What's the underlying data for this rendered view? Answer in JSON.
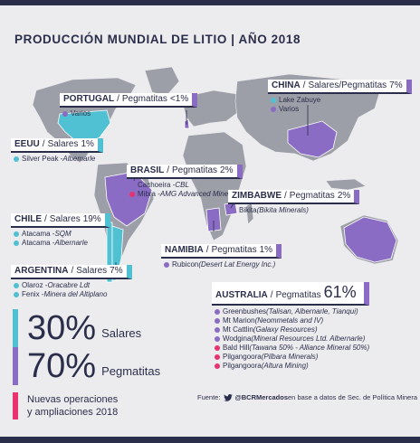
{
  "title": "PRODUCCIÓN MUNDIAL DE LITIO | AÑO 2018",
  "colors": {
    "pegmatitas": "#8b6cc4",
    "salares": "#4fc1d2",
    "nuevas": "#e8336e",
    "dark": "#2b2e4a",
    "land": "#9d9fa8"
  },
  "countries": {
    "portugal": {
      "name": "PORTUGAL",
      "type": "Pegmatitas",
      "pct": "<1%",
      "items": [
        {
          "text": "Varios",
          "extra": "",
          "kind": "p"
        }
      ]
    },
    "china": {
      "name": "CHINA",
      "type": "Salares/Pegmatitas",
      "pct": "7%",
      "items": [
        {
          "text": "Lake Zabuye",
          "extra": "",
          "kind": "s"
        },
        {
          "text": "Varios",
          "extra": "",
          "kind": "p"
        }
      ]
    },
    "eeuu": {
      "name": "EEUU",
      "type": "Salares",
      "pct": "1%",
      "items": [
        {
          "text": "Silver Peak - ",
          "extra": "Albemarle",
          "kind": "s"
        }
      ]
    },
    "brasil": {
      "name": "BRASIL",
      "type": "Pegmatitas",
      "pct": "2%",
      "items": [
        {
          "text": "Cachoeira - ",
          "extra": "CBL",
          "kind": "p"
        },
        {
          "text": "Mibra - ",
          "extra": "AMG Advanced Minerals",
          "kind": "n"
        }
      ]
    },
    "zimbabwe": {
      "name": "ZIMBABWE",
      "type": "Pegmatitas",
      "pct": "2%",
      "items": [
        {
          "text": "Bikita ",
          "extra": "(Bikita Minerals)",
          "kind": "p"
        }
      ]
    },
    "chile": {
      "name": "CHILE",
      "type": "Salares",
      "pct": "19%",
      "items": [
        {
          "text": "Atacama - ",
          "extra": "SQM",
          "kind": "s"
        },
        {
          "text": "Atacama - ",
          "extra": "Albernarle",
          "kind": "s"
        }
      ]
    },
    "namibia": {
      "name": "NAMIBIA",
      "type": "Pegmatitas",
      "pct": "1%",
      "items": [
        {
          "text": "Rubicon ",
          "extra": "(Desert Lat Energy Inc.)",
          "kind": "p"
        }
      ]
    },
    "argentina": {
      "name": "ARGENTINA",
      "type": "Salares",
      "pct": "7%",
      "items": [
        {
          "text": "Olaroz - ",
          "extra": "Oracabre Ldt",
          "kind": "s"
        },
        {
          "text": "Fenix - ",
          "extra": "Minera del Altiplano",
          "kind": "s"
        }
      ]
    },
    "australia": {
      "name": "AUSTRALIA",
      "type": "Pegmatitas",
      "pct": "61%",
      "items": [
        {
          "text": "Greenbushes ",
          "extra": "(Talisan, Albernarle, Tianqui)",
          "kind": "p"
        },
        {
          "text": "Mt Marion ",
          "extra": "(Neommetals and IV)",
          "kind": "p"
        },
        {
          "text": "Mt Cattlin ",
          "extra": "(Galaxy Resources)",
          "kind": "p"
        },
        {
          "text": "Wodgina ",
          "extra": "(Mineral Resources Ltd. Albernarle)",
          "kind": "p"
        },
        {
          "text": "Bald Hill ",
          "extra": "(Tawana 50% - Alliance Mineral 50%)",
          "kind": "n"
        },
        {
          "text": "Pilgangoora ",
          "extra": "(Pilbara Minerals)",
          "kind": "n"
        },
        {
          "text": "Pilgangoora ",
          "extra": "(Altura Mining)",
          "kind": "n"
        }
      ]
    }
  },
  "legend": {
    "salares_pct": "30%",
    "salares_label": "Salares",
    "pegmatitas_pct": "70%",
    "pegmatitas_label": "Pegmatitas",
    "nuevas_line1": "Nuevas operaciones",
    "nuevas_line2": "y ampliaciones 2018"
  },
  "footer": {
    "prefix": "Fuente:",
    "handle": "@BCRMercados",
    "text": " en base a datos de Sec. de Política Minera"
  }
}
